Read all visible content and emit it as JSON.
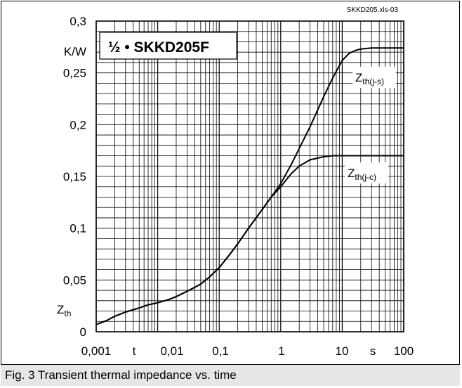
{
  "caption": "Fig. 3 Transient thermal impedance vs. time",
  "chart_data": {
    "type": "line",
    "source_label": "SKKD205.xls-03",
    "title": "½ • SKKD205F",
    "x_scale": "log",
    "xlim": [
      0.001,
      100
    ],
    "ylim": [
      0,
      0.3
    ],
    "x_ticks": [
      "0,001",
      "0,01",
      "0,1",
      "1",
      "10",
      "100"
    ],
    "x_tick_values": [
      0.001,
      0.01,
      0.1,
      1,
      10,
      100
    ],
    "y_ticks": [
      "0",
      "0,05",
      "0,1",
      "0,15",
      "0,2",
      "0,25",
      "0,3"
    ],
    "y_tick_values": [
      0,
      0.05,
      0.1,
      0.15,
      0.2,
      0.25,
      0.3
    ],
    "xlabel": "t",
    "x_unit": "s",
    "ylabel": "Zth",
    "y_unit": "K/W",
    "grid": true,
    "line_color": "#000000",
    "series": [
      {
        "name": "Zth(j-s)",
        "label_main": "Z",
        "label_sub": "th(j-s)",
        "points": [
          [
            0.001,
            0.007
          ],
          [
            0.0015,
            0.011
          ],
          [
            0.002,
            0.015
          ],
          [
            0.003,
            0.019
          ],
          [
            0.005,
            0.023
          ],
          [
            0.007,
            0.026
          ],
          [
            0.01,
            0.028
          ],
          [
            0.015,
            0.031
          ],
          [
            0.02,
            0.034
          ],
          [
            0.03,
            0.039
          ],
          [
            0.05,
            0.046
          ],
          [
            0.07,
            0.053
          ],
          [
            0.1,
            0.062
          ],
          [
            0.15,
            0.075
          ],
          [
            0.2,
            0.085
          ],
          [
            0.3,
            0.1
          ],
          [
            0.5,
            0.118
          ],
          [
            0.7,
            0.13
          ],
          [
            1,
            0.143
          ],
          [
            1.5,
            0.162
          ],
          [
            2,
            0.177
          ],
          [
            3,
            0.198
          ],
          [
            5,
            0.227
          ],
          [
            7,
            0.245
          ],
          [
            10,
            0.262
          ],
          [
            13,
            0.269
          ],
          [
            17,
            0.272
          ],
          [
            20,
            0.273
          ],
          [
            30,
            0.274
          ],
          [
            100,
            0.274
          ]
        ]
      },
      {
        "name": "Zth(j-c)",
        "label_main": "Z",
        "label_sub": "th(j-c)",
        "points": [
          [
            0.001,
            0.007
          ],
          [
            0.0015,
            0.011
          ],
          [
            0.002,
            0.015
          ],
          [
            0.003,
            0.019
          ],
          [
            0.005,
            0.023
          ],
          [
            0.007,
            0.026
          ],
          [
            0.01,
            0.028
          ],
          [
            0.015,
            0.031
          ],
          [
            0.02,
            0.034
          ],
          [
            0.03,
            0.039
          ],
          [
            0.05,
            0.046
          ],
          [
            0.07,
            0.053
          ],
          [
            0.1,
            0.062
          ],
          [
            0.15,
            0.075
          ],
          [
            0.2,
            0.085
          ],
          [
            0.3,
            0.1
          ],
          [
            0.5,
            0.118
          ],
          [
            0.7,
            0.13
          ],
          [
            1,
            0.14
          ],
          [
            1.5,
            0.153
          ],
          [
            2,
            0.16
          ],
          [
            3,
            0.166
          ],
          [
            5,
            0.169
          ],
          [
            7,
            0.17
          ],
          [
            10,
            0.17
          ],
          [
            100,
            0.17
          ]
        ]
      }
    ]
  }
}
